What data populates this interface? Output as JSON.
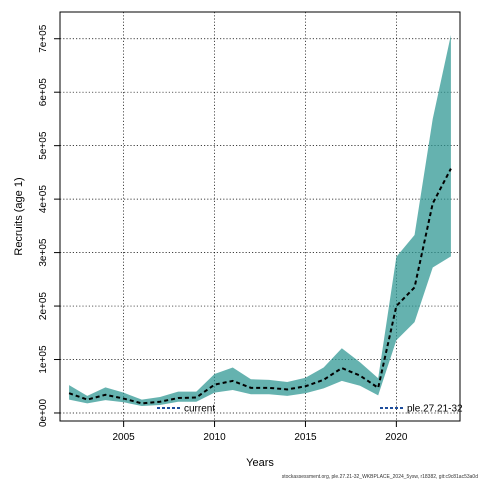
{
  "chart_data": {
    "type": "area",
    "xlabel": "Years",
    "ylabel": "Recruits (age 1)",
    "xlim": [
      2001.5,
      2023.5
    ],
    "ylim": [
      -15000,
      750000
    ],
    "x_ticks": [
      2005,
      2010,
      2015,
      2020
    ],
    "x_tick_labels": [
      "2005",
      "2010",
      "2015",
      "2020"
    ],
    "y_ticks": [
      0,
      100000,
      200000,
      300000,
      400000,
      500000,
      600000,
      700000
    ],
    "y_tick_labels": [
      "0e+00",
      "1e+05",
      "2e+05",
      "3e+05",
      "4e+05",
      "5e+05",
      "6e+05",
      "7e+05"
    ],
    "grid": true,
    "legend_position": "bottom",
    "colors": {
      "band": "#2a9490",
      "line": "#000000",
      "legend_line": "#1f4e9c"
    },
    "x": [
      2002,
      2003,
      2004,
      2005,
      2006,
      2007,
      2008,
      2009,
      2010,
      2011,
      2012,
      2013,
      2014,
      2015,
      2016,
      2017,
      2018,
      2019,
      2020,
      2021,
      2022,
      2023
    ],
    "series": [
      {
        "name": "current",
        "values": [
          37000,
          25000,
          34000,
          27000,
          18000,
          21000,
          28000,
          29000,
          53000,
          60000,
          47000,
          47000,
          44000,
          50000,
          62000,
          84000,
          70000,
          47000,
          200000,
          235000,
          392000,
          457000
        ],
        "lower": [
          25000,
          18000,
          24000,
          20000,
          13000,
          15000,
          21000,
          21000,
          38000,
          43000,
          35000,
          35000,
          32000,
          37000,
          46000,
          60000,
          51000,
          33000,
          136000,
          170000,
          272000,
          293000
        ],
        "upper": [
          52000,
          32000,
          48000,
          38000,
          25000,
          30000,
          40000,
          40000,
          73000,
          85000,
          63000,
          62000,
          58000,
          66000,
          85000,
          121000,
          95000,
          65000,
          292000,
          333000,
          550000,
          707000
        ]
      }
    ],
    "legend": [
      "current",
      "ple.27.21-32"
    ],
    "footnote": "stockassessment.org, ple.27.21-32_WKBPLACE_2024_5ysw, r18382, git:c9c81ac53a0d"
  }
}
